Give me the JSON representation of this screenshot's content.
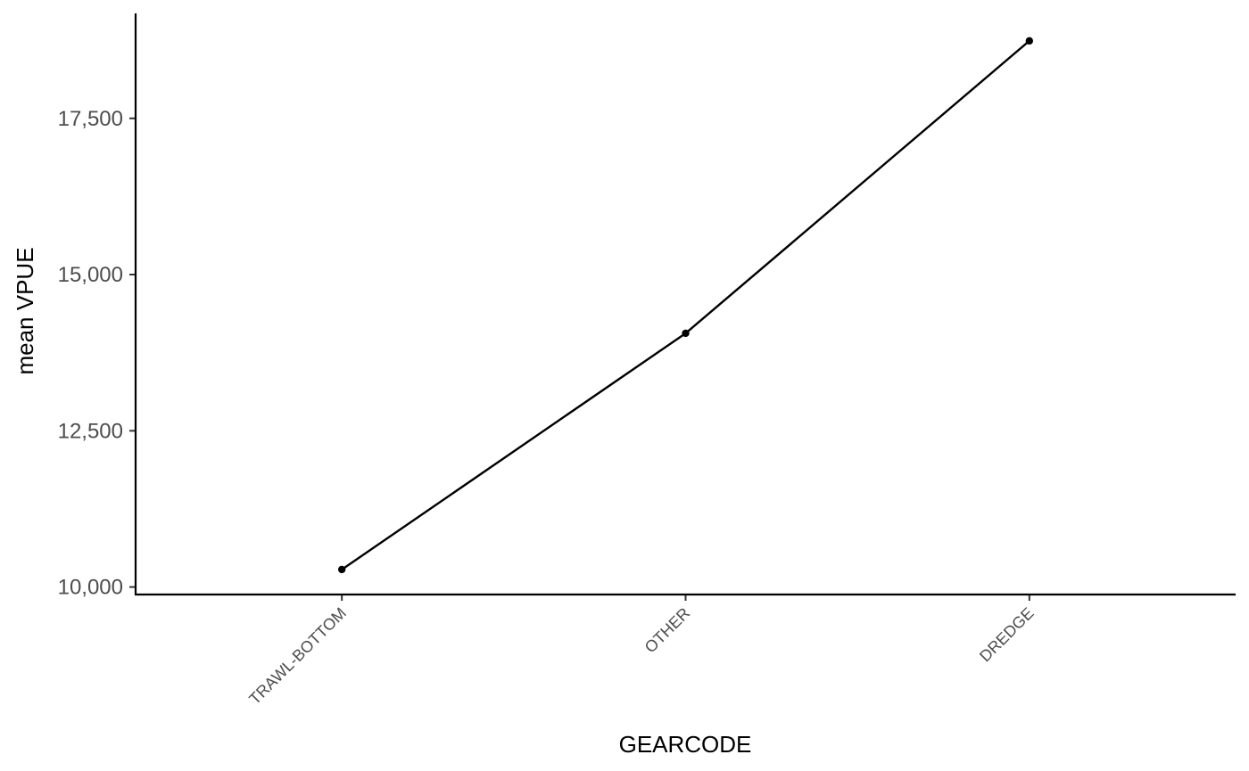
{
  "chart_data": {
    "type": "line",
    "categories": [
      "TRAWL-BOTTOM",
      "OTHER",
      "DREDGE"
    ],
    "values": [
      10280,
      14060,
      18740
    ],
    "xlabel": "GEARCODE",
    "ylabel": "mean VPUE",
    "ylim": [
      9880,
      19180
    ],
    "yticks": [
      10000,
      12500,
      15000,
      17500
    ],
    "ytick_labels": [
      "10,000",
      "12,500",
      "15,000",
      "17,500"
    ],
    "grid": false,
    "legend": "none",
    "line_color": "#000000"
  }
}
